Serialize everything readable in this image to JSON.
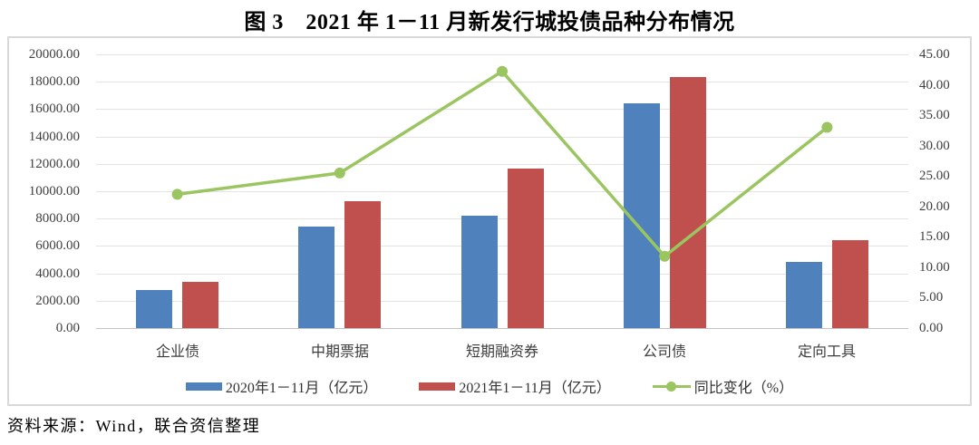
{
  "title": "图 3　2021 年 1－11 月新发行城投债品种分布情况",
  "source": "资料来源：Wind，联合资信整理",
  "colors": {
    "bar_2020": "#4f81bd",
    "bar_2021": "#c0504d",
    "line_yoy": "#9ac560",
    "gridline": "#e4e4e4",
    "axis_line": "#c2c2c2",
    "frame_border": "#d9d9d9",
    "tick_text": "#404040"
  },
  "chart_data": {
    "type": "bar+line",
    "title": "图 3　2021 年 1－11 月新发行城投债品种分布情况",
    "categories": [
      "企业债",
      "中期票据",
      "短期融资券",
      "公司债",
      "定向工具"
    ],
    "series": [
      {
        "name": "2020年1－11月（亿元）",
        "type": "bar",
        "axis": "left",
        "color": "#4f81bd",
        "values": [
          2800,
          7400,
          8200,
          16450,
          4850
        ]
      },
      {
        "name": "2021年1－11月（亿元）",
        "type": "bar",
        "axis": "left",
        "color": "#c0504d",
        "values": [
          3400,
          9250,
          11650,
          18350,
          6450
        ]
      },
      {
        "name": "同比变化（%）",
        "type": "line",
        "axis": "right",
        "color": "#9ac560",
        "values": [
          22.0,
          25.5,
          42.2,
          11.8,
          33.0
        ]
      }
    ],
    "left_axis": {
      "min": 0,
      "max": 20000,
      "step": 2000,
      "tick_labels": [
        "20000.00",
        "18000.00",
        "16000.00",
        "14000.00",
        "12000.00",
        "10000.00",
        "8000.00",
        "6000.00",
        "4000.00",
        "2000.00",
        "0.00"
      ]
    },
    "right_axis": {
      "min": 0,
      "max": 45,
      "step": 5,
      "tick_labels": [
        "45.00",
        "40.00",
        "35.00",
        "30.00",
        "25.00",
        "20.00",
        "15.00",
        "10.00",
        "5.00",
        "0.00"
      ]
    },
    "grid": true,
    "legend_position": "bottom"
  }
}
